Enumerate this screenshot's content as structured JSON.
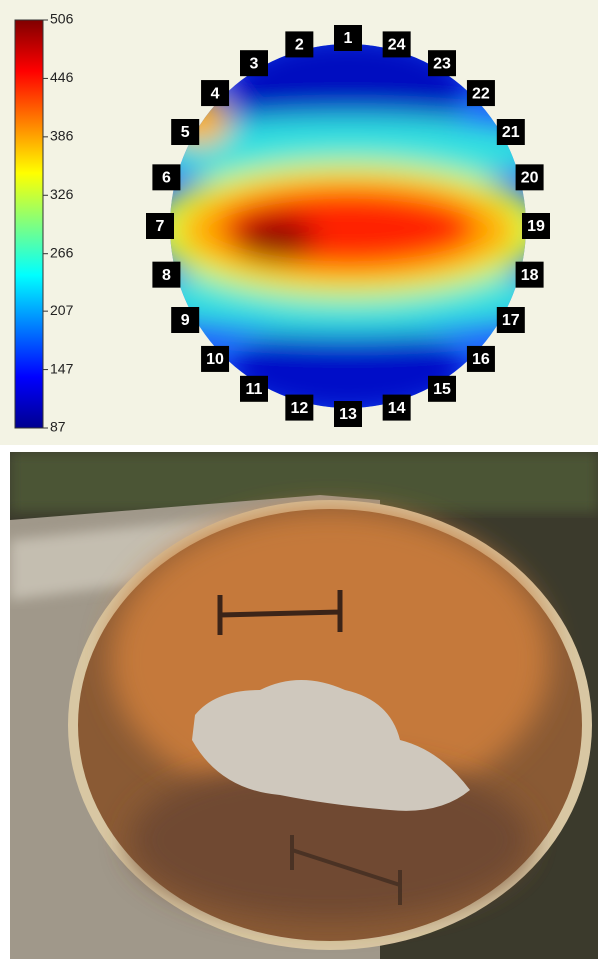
{
  "colorbar": {
    "range": [
      87,
      506
    ],
    "ticks": [
      87,
      147,
      207,
      266,
      326,
      386,
      446,
      506
    ]
  },
  "sensors": [
    "1",
    "2",
    "3",
    "4",
    "5",
    "6",
    "7",
    "8",
    "9",
    "10",
    "11",
    "12",
    "13",
    "14",
    "15",
    "16",
    "17",
    "18",
    "19",
    "20",
    "21",
    "22",
    "23",
    "24"
  ]
}
